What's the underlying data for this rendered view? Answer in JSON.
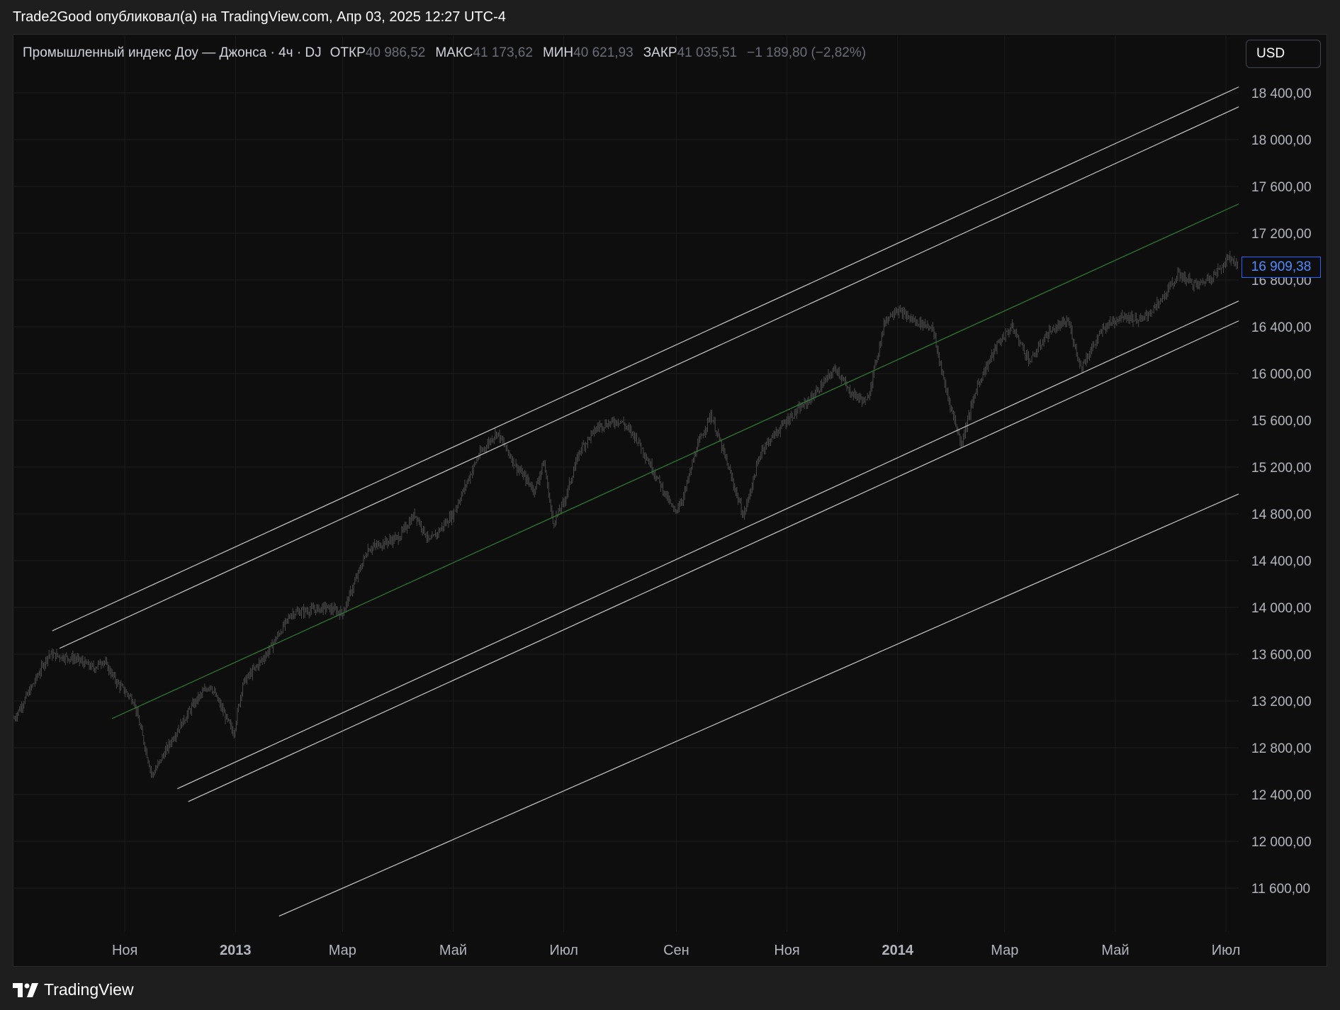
{
  "header": {
    "publisher_line": "Trade2Good опубликовал(а) на TradingView.com, Апр 03, 2025 12:27 UTC-4"
  },
  "legend": {
    "symbol": "Промышленный индекс Доу — Джонса · 4ч · DJ",
    "open_label": "ОТКР",
    "open_value": "40 986,52",
    "high_label": "МАКС",
    "high_value": "41 173,62",
    "low_label": "МИН",
    "low_value": "40 621,93",
    "close_label": "ЗАКР",
    "close_value": "41 035,51",
    "change": "−1 189,80 (−2,82%)"
  },
  "currency_button": "USD",
  "last_price_label": "16 909,38",
  "footer": {
    "brand": "TradingView"
  },
  "colors": {
    "background": "#0e0e0e",
    "candles": "#4a4a4a",
    "channel_lines": "#c8c8c8",
    "median_line": "#2e7d32",
    "last_price_border": "#2962ff"
  },
  "chart_data": {
    "type": "candlestick",
    "title": "",
    "xlabel": "",
    "ylabel": "",
    "ylim": [
      11300,
      18700
    ],
    "xlim": [
      "2012-09-01",
      "2014-07-08"
    ],
    "y_ticks": [
      "18 400,00",
      "18 000,00",
      "17 600,00",
      "17 200,00",
      "16 800,00",
      "16 400,00",
      "16 000,00",
      "15 600,00",
      "15 200,00",
      "14 800,00",
      "14 400,00",
      "14 000,00",
      "13 600,00",
      "13 200,00",
      "12 800,00",
      "12 400,00",
      "12 000,00",
      "11 600,00"
    ],
    "y_tick_values": [
      18400,
      18000,
      17600,
      17200,
      16800,
      16400,
      16000,
      15600,
      15200,
      14800,
      14400,
      14000,
      13600,
      13200,
      12800,
      12400,
      12000,
      11600
    ],
    "x_ticks": [
      {
        "label": "Ноя",
        "date": "2012-11-01",
        "bold": false
      },
      {
        "label": "2013",
        "date": "2013-01-01",
        "bold": true
      },
      {
        "label": "Мар",
        "date": "2013-03-01",
        "bold": false
      },
      {
        "label": "Май",
        "date": "2013-05-01",
        "bold": false
      },
      {
        "label": "Июл",
        "date": "2013-07-01",
        "bold": false
      },
      {
        "label": "Сен",
        "date": "2013-09-01",
        "bold": false
      },
      {
        "label": "Ноя",
        "date": "2013-11-01",
        "bold": false
      },
      {
        "label": "2014",
        "date": "2014-01-01",
        "bold": true
      },
      {
        "label": "Мар",
        "date": "2014-03-01",
        "bold": false
      },
      {
        "label": "Май",
        "date": "2014-05-01",
        "bold": false
      },
      {
        "label": "Июл",
        "date": "2014-07-01",
        "bold": false
      }
    ],
    "price_path": [
      [
        "2012-09-01",
        13050
      ],
      [
        "2012-09-10",
        13300
      ],
      [
        "2012-09-20",
        13600
      ],
      [
        "2012-10-05",
        13560
      ],
      [
        "2012-10-15",
        13480
      ],
      [
        "2012-10-20",
        13550
      ],
      [
        "2012-10-28",
        13350
      ],
      [
        "2012-11-06",
        13200
      ],
      [
        "2012-11-16",
        12560
      ],
      [
        "2012-11-28",
        12900
      ],
      [
        "2012-12-10",
        13200
      ],
      [
        "2012-12-18",
        13340
      ],
      [
        "2012-12-31",
        12920
      ],
      [
        "2013-01-05",
        13350
      ],
      [
        "2013-01-18",
        13600
      ],
      [
        "2013-02-01",
        13950
      ],
      [
        "2013-02-20",
        14000
      ],
      [
        "2013-03-01",
        13950
      ],
      [
        "2013-03-15",
        14500
      ],
      [
        "2013-04-01",
        14600
      ],
      [
        "2013-04-10",
        14800
      ],
      [
        "2013-04-18",
        14560
      ],
      [
        "2013-05-01",
        14800
      ],
      [
        "2013-05-15",
        15300
      ],
      [
        "2013-05-25",
        15500
      ],
      [
        "2013-06-05",
        15200
      ],
      [
        "2013-06-15",
        15000
      ],
      [
        "2013-06-20",
        15250
      ],
      [
        "2013-06-25",
        14720
      ],
      [
        "2013-07-01",
        14900
      ],
      [
        "2013-07-10",
        15350
      ],
      [
        "2013-07-20",
        15550
      ],
      [
        "2013-08-01",
        15600
      ],
      [
        "2013-08-10",
        15450
      ],
      [
        "2013-08-25",
        15000
      ],
      [
        "2013-08-31",
        14810
      ],
      [
        "2013-09-05",
        14950
      ],
      [
        "2013-09-12",
        15350
      ],
      [
        "2013-09-20",
        15650
      ],
      [
        "2013-09-28",
        15280
      ],
      [
        "2013-10-08",
        14780
      ],
      [
        "2013-10-18",
        15350
      ],
      [
        "2013-11-01",
        15600
      ],
      [
        "2013-11-15",
        15800
      ],
      [
        "2013-11-28",
        16050
      ],
      [
        "2013-12-05",
        15850
      ],
      [
        "2013-12-15",
        15750
      ],
      [
        "2013-12-25",
        16450
      ],
      [
        "2013-12-31",
        16550
      ],
      [
        "2014-01-10",
        16450
      ],
      [
        "2014-01-20",
        16400
      ],
      [
        "2014-01-27",
        15900
      ],
      [
        "2014-02-05",
        15400
      ],
      [
        "2014-02-14",
        15900
      ],
      [
        "2014-02-25",
        16250
      ],
      [
        "2014-03-05",
        16400
      ],
      [
        "2014-03-15",
        16100
      ],
      [
        "2014-03-25",
        16350
      ],
      [
        "2014-04-05",
        16450
      ],
      [
        "2014-04-12",
        16050
      ],
      [
        "2014-04-25",
        16400
      ],
      [
        "2014-05-05",
        16500
      ],
      [
        "2014-05-15",
        16450
      ],
      [
        "2014-05-25",
        16600
      ],
      [
        "2014-06-05",
        16850
      ],
      [
        "2014-06-15",
        16750
      ],
      [
        "2014-06-25",
        16850
      ],
      [
        "2014-07-03",
        17000
      ],
      [
        "2014-07-08",
        16909.38
      ]
    ],
    "last_price": 16909.38,
    "channel_lines": [
      {
        "name": "",
        "from": [
          "2012-09-22",
          13800
        ],
        "to": [
          "2014-07-08",
          18450
        ],
        "color": "#c8c8c8"
      },
      {
        "name": "",
        "from": [
          "2012-09-26",
          13650
        ],
        "to": [
          "2014-07-08",
          18280
        ],
        "color": "#c8c8c8"
      },
      {
        "name": "",
        "from": [
          "2012-10-25",
          13050
        ],
        "to": [
          "2014-07-08",
          17450
        ],
        "color": "#2e7d32"
      },
      {
        "name": "",
        "from": [
          "2012-11-30",
          12450
        ],
        "to": [
          "2014-07-08",
          16620
        ],
        "color": "#c8c8c8"
      },
      {
        "name": "",
        "from": [
          "2012-12-06",
          12340
        ],
        "to": [
          "2014-07-08",
          16450
        ],
        "color": "#c8c8c8"
      },
      {
        "name": "",
        "from": [
          "2013-01-25",
          11360
        ],
        "to": [
          "2014-07-08",
          14970
        ],
        "color": "#c8c8c8"
      }
    ]
  }
}
